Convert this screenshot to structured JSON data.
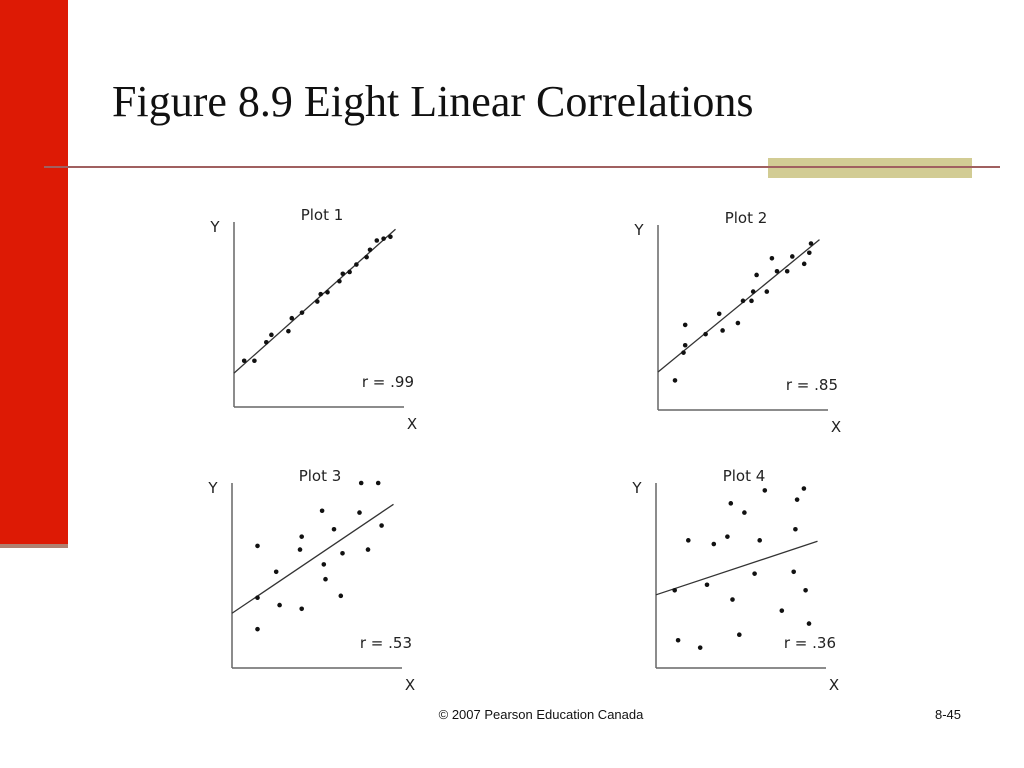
{
  "title": "Figure 8.9  Eight Linear Correlations",
  "footer": "© 2007 Pearson Education Canada",
  "page": "8-45",
  "chart_data": [
    {
      "type": "scatter",
      "title": "Plot 1",
      "x_label": "X",
      "y_label": "Y",
      "annotation": "r = .99",
      "xlim": [
        0,
        100
      ],
      "ylim": [
        0,
        100
      ],
      "x": [
        6,
        12,
        19,
        22,
        32,
        34,
        40,
        49,
        51,
        55,
        62,
        64,
        68,
        72,
        78,
        80,
        84,
        88,
        92
      ],
      "y": [
        25,
        25,
        35,
        39,
        41,
        48,
        51,
        57,
        61,
        62,
        68,
        72,
        73,
        77,
        81,
        85,
        90,
        91,
        92
      ]
    },
    {
      "type": "scatter",
      "title": "Plot 2",
      "x_label": "X",
      "y_label": "Y",
      "annotation": "r = .85",
      "xlim": [
        0,
        100
      ],
      "ylim": [
        0,
        100
      ],
      "x": [
        10,
        15,
        16,
        16,
        28,
        36,
        38,
        47,
        50,
        55,
        56,
        58,
        64,
        67,
        70,
        76,
        79,
        86,
        89,
        90
      ],
      "y": [
        16,
        31,
        35,
        46,
        41,
        52,
        43,
        47,
        59,
        59,
        64,
        73,
        64,
        82,
        75,
        75,
        83,
        79,
        85,
        90
      ]
    },
    {
      "type": "scatter",
      "title": "Plot 3",
      "x_label": "X",
      "y_label": "Y",
      "annotation": "r = .53",
      "xlim": [
        0,
        100
      ],
      "ylim": [
        0,
        100
      ],
      "x": [
        15,
        15,
        15,
        26,
        28,
        40,
        41,
        41,
        53,
        54,
        55,
        60,
        64,
        65,
        75,
        76,
        80,
        86,
        88
      ],
      "y": [
        66,
        38,
        21,
        52,
        34,
        64,
        71,
        32,
        85,
        56,
        48,
        75,
        39,
        62,
        84,
        100,
        64,
        100,
        77
      ]
    },
    {
      "type": "scatter",
      "title": "Plot 4",
      "x_label": "X",
      "y_label": "Y",
      "annotation": "r = .36",
      "xlim": [
        0,
        100
      ],
      "ylim": [
        0,
        100
      ],
      "x": [
        11,
        13,
        19,
        26,
        30,
        34,
        42,
        44,
        45,
        49,
        52,
        58,
        61,
        64,
        74,
        81,
        82,
        83,
        88,
        87,
        90
      ],
      "y": [
        42,
        15,
        69,
        11,
        45,
        67,
        71,
        89,
        37,
        18,
        84,
        51,
        69,
        96,
        31,
        52,
        75,
        91,
        42,
        97,
        24
      ]
    }
  ]
}
